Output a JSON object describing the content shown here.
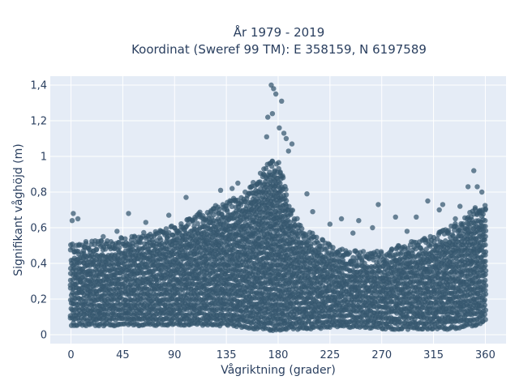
{
  "chart_data": {
    "type": "scatter",
    "title_lines": [
      "År 1979 - 2019",
      "Koordinat (Sweref 99 TM): E 358159, N 6197589"
    ],
    "xlabel": "Vågriktning (grader)",
    "ylabel": "Signifikant våghöjd (m)",
    "xlim": [
      -18,
      378
    ],
    "ylim": [
      -0.05,
      1.45
    ],
    "x_ticks": [
      0,
      45,
      90,
      135,
      180,
      225,
      270,
      315,
      360
    ],
    "x_tick_labels": [
      "0",
      "45",
      "90",
      "135",
      "180",
      "225",
      "270",
      "315",
      "360"
    ],
    "y_ticks": [
      0,
      0.2,
      0.4,
      0.6,
      0.8,
      1.0,
      1.2,
      1.4
    ],
    "y_tick_labels": [
      "0",
      "0,2",
      "0,4",
      "0,6",
      "0,8",
      "1",
      "1,2",
      "1,4"
    ],
    "grid": true,
    "legend": "none",
    "colors": {
      "marker": "#34566e",
      "plot_bg": "#e5ecf6",
      "grid": "#ffffff",
      "text": "#2a3f5f"
    },
    "envelope": {
      "direction": [
        0,
        15,
        30,
        45,
        60,
        75,
        90,
        105,
        120,
        135,
        150,
        160,
        170,
        175,
        180,
        185,
        190,
        200,
        210,
        225,
        240,
        255,
        270,
        285,
        300,
        315,
        330,
        340,
        350,
        360
      ],
      "min_height": [
        0.05,
        0.05,
        0.05,
        0.05,
        0.05,
        0.05,
        0.05,
        0.05,
        0.05,
        0.05,
        0.04,
        0.03,
        0.03,
        0.02,
        0.02,
        0.02,
        0.03,
        0.03,
        0.03,
        0.04,
        0.04,
        0.04,
        0.03,
        0.03,
        0.03,
        0.03,
        0.03,
        0.04,
        0.05,
        0.07
      ],
      "dense_max": [
        0.44,
        0.46,
        0.46,
        0.48,
        0.5,
        0.52,
        0.55,
        0.6,
        0.64,
        0.68,
        0.72,
        0.8,
        0.88,
        0.92,
        0.9,
        0.82,
        0.66,
        0.54,
        0.5,
        0.44,
        0.41,
        0.4,
        0.4,
        0.44,
        0.46,
        0.49,
        0.54,
        0.58,
        0.65,
        0.66
      ]
    },
    "outliers": [
      {
        "x": 174,
        "y": 1.4
      },
      {
        "x": 176,
        "y": 1.38
      },
      {
        "x": 178,
        "y": 1.35
      },
      {
        "x": 183,
        "y": 1.31
      },
      {
        "x": 171,
        "y": 1.22
      },
      {
        "x": 175,
        "y": 1.24
      },
      {
        "x": 185,
        "y": 1.13
      },
      {
        "x": 170,
        "y": 1.11
      },
      {
        "x": 187,
        "y": 1.1
      },
      {
        "x": 181,
        "y": 1.16
      },
      {
        "x": 192,
        "y": 1.07
      },
      {
        "x": 189,
        "y": 1.03
      },
      {
        "x": 350,
        "y": 0.92
      },
      {
        "x": 345,
        "y": 0.83
      },
      {
        "x": 353,
        "y": 0.83
      },
      {
        "x": 357,
        "y": 0.8
      },
      {
        "x": 310,
        "y": 0.75
      },
      {
        "x": 323,
        "y": 0.73
      },
      {
        "x": 320,
        "y": 0.7
      },
      {
        "x": 267,
        "y": 0.73
      },
      {
        "x": 205,
        "y": 0.79
      },
      {
        "x": 100,
        "y": 0.77
      },
      {
        "x": 2,
        "y": 0.68
      },
      {
        "x": 6,
        "y": 0.65
      },
      {
        "x": 1,
        "y": 0.64
      },
      {
        "x": 50,
        "y": 0.68
      },
      {
        "x": 85,
        "y": 0.67
      },
      {
        "x": 145,
        "y": 0.85
      },
      {
        "x": 130,
        "y": 0.81
      },
      {
        "x": 140,
        "y": 0.82
      },
      {
        "x": 210,
        "y": 0.69
      },
      {
        "x": 235,
        "y": 0.65
      },
      {
        "x": 250,
        "y": 0.64
      },
      {
        "x": 282,
        "y": 0.66
      },
      {
        "x": 300,
        "y": 0.66
      },
      {
        "x": 334,
        "y": 0.65
      },
      {
        "x": 28,
        "y": 0.55
      },
      {
        "x": 40,
        "y": 0.58
      },
      {
        "x": 65,
        "y": 0.63
      },
      {
        "x": 78,
        "y": 0.58
      },
      {
        "x": 225,
        "y": 0.62
      },
      {
        "x": 245,
        "y": 0.57
      },
      {
        "x": 262,
        "y": 0.6
      },
      {
        "x": 292,
        "y": 0.58
      },
      {
        "x": 338,
        "y": 0.72
      },
      {
        "x": 360,
        "y": 0.7
      }
    ]
  }
}
